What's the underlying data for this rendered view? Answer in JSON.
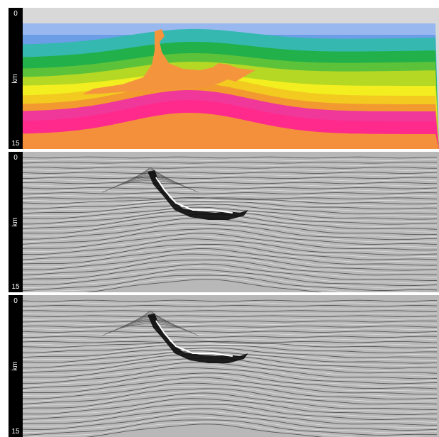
{
  "panels": [
    {
      "name": "velocity-model",
      "axis": {
        "top": "0",
        "bottom": "15",
        "unit": "km"
      },
      "colors": {
        "background": "#e2e2e2",
        "layers": [
          "#d8d8d8",
          "#9ab8f0",
          "#6c9ee8",
          "#34b8b0",
          "#22b04a",
          "#5cc23a",
          "#b4d824",
          "#f2ee20",
          "#f2ca20",
          "#f29a30",
          "#f0389a",
          "#ff2a8c",
          "#f4903c"
        ],
        "salt": "#f4953e"
      }
    },
    {
      "name": "seismic-image-1",
      "axis": {
        "top": "0",
        "bottom": "15",
        "unit": "km"
      }
    },
    {
      "name": "seismic-image-2",
      "axis": {
        "top": "0",
        "bottom": "15",
        "unit": "km"
      }
    }
  ]
}
